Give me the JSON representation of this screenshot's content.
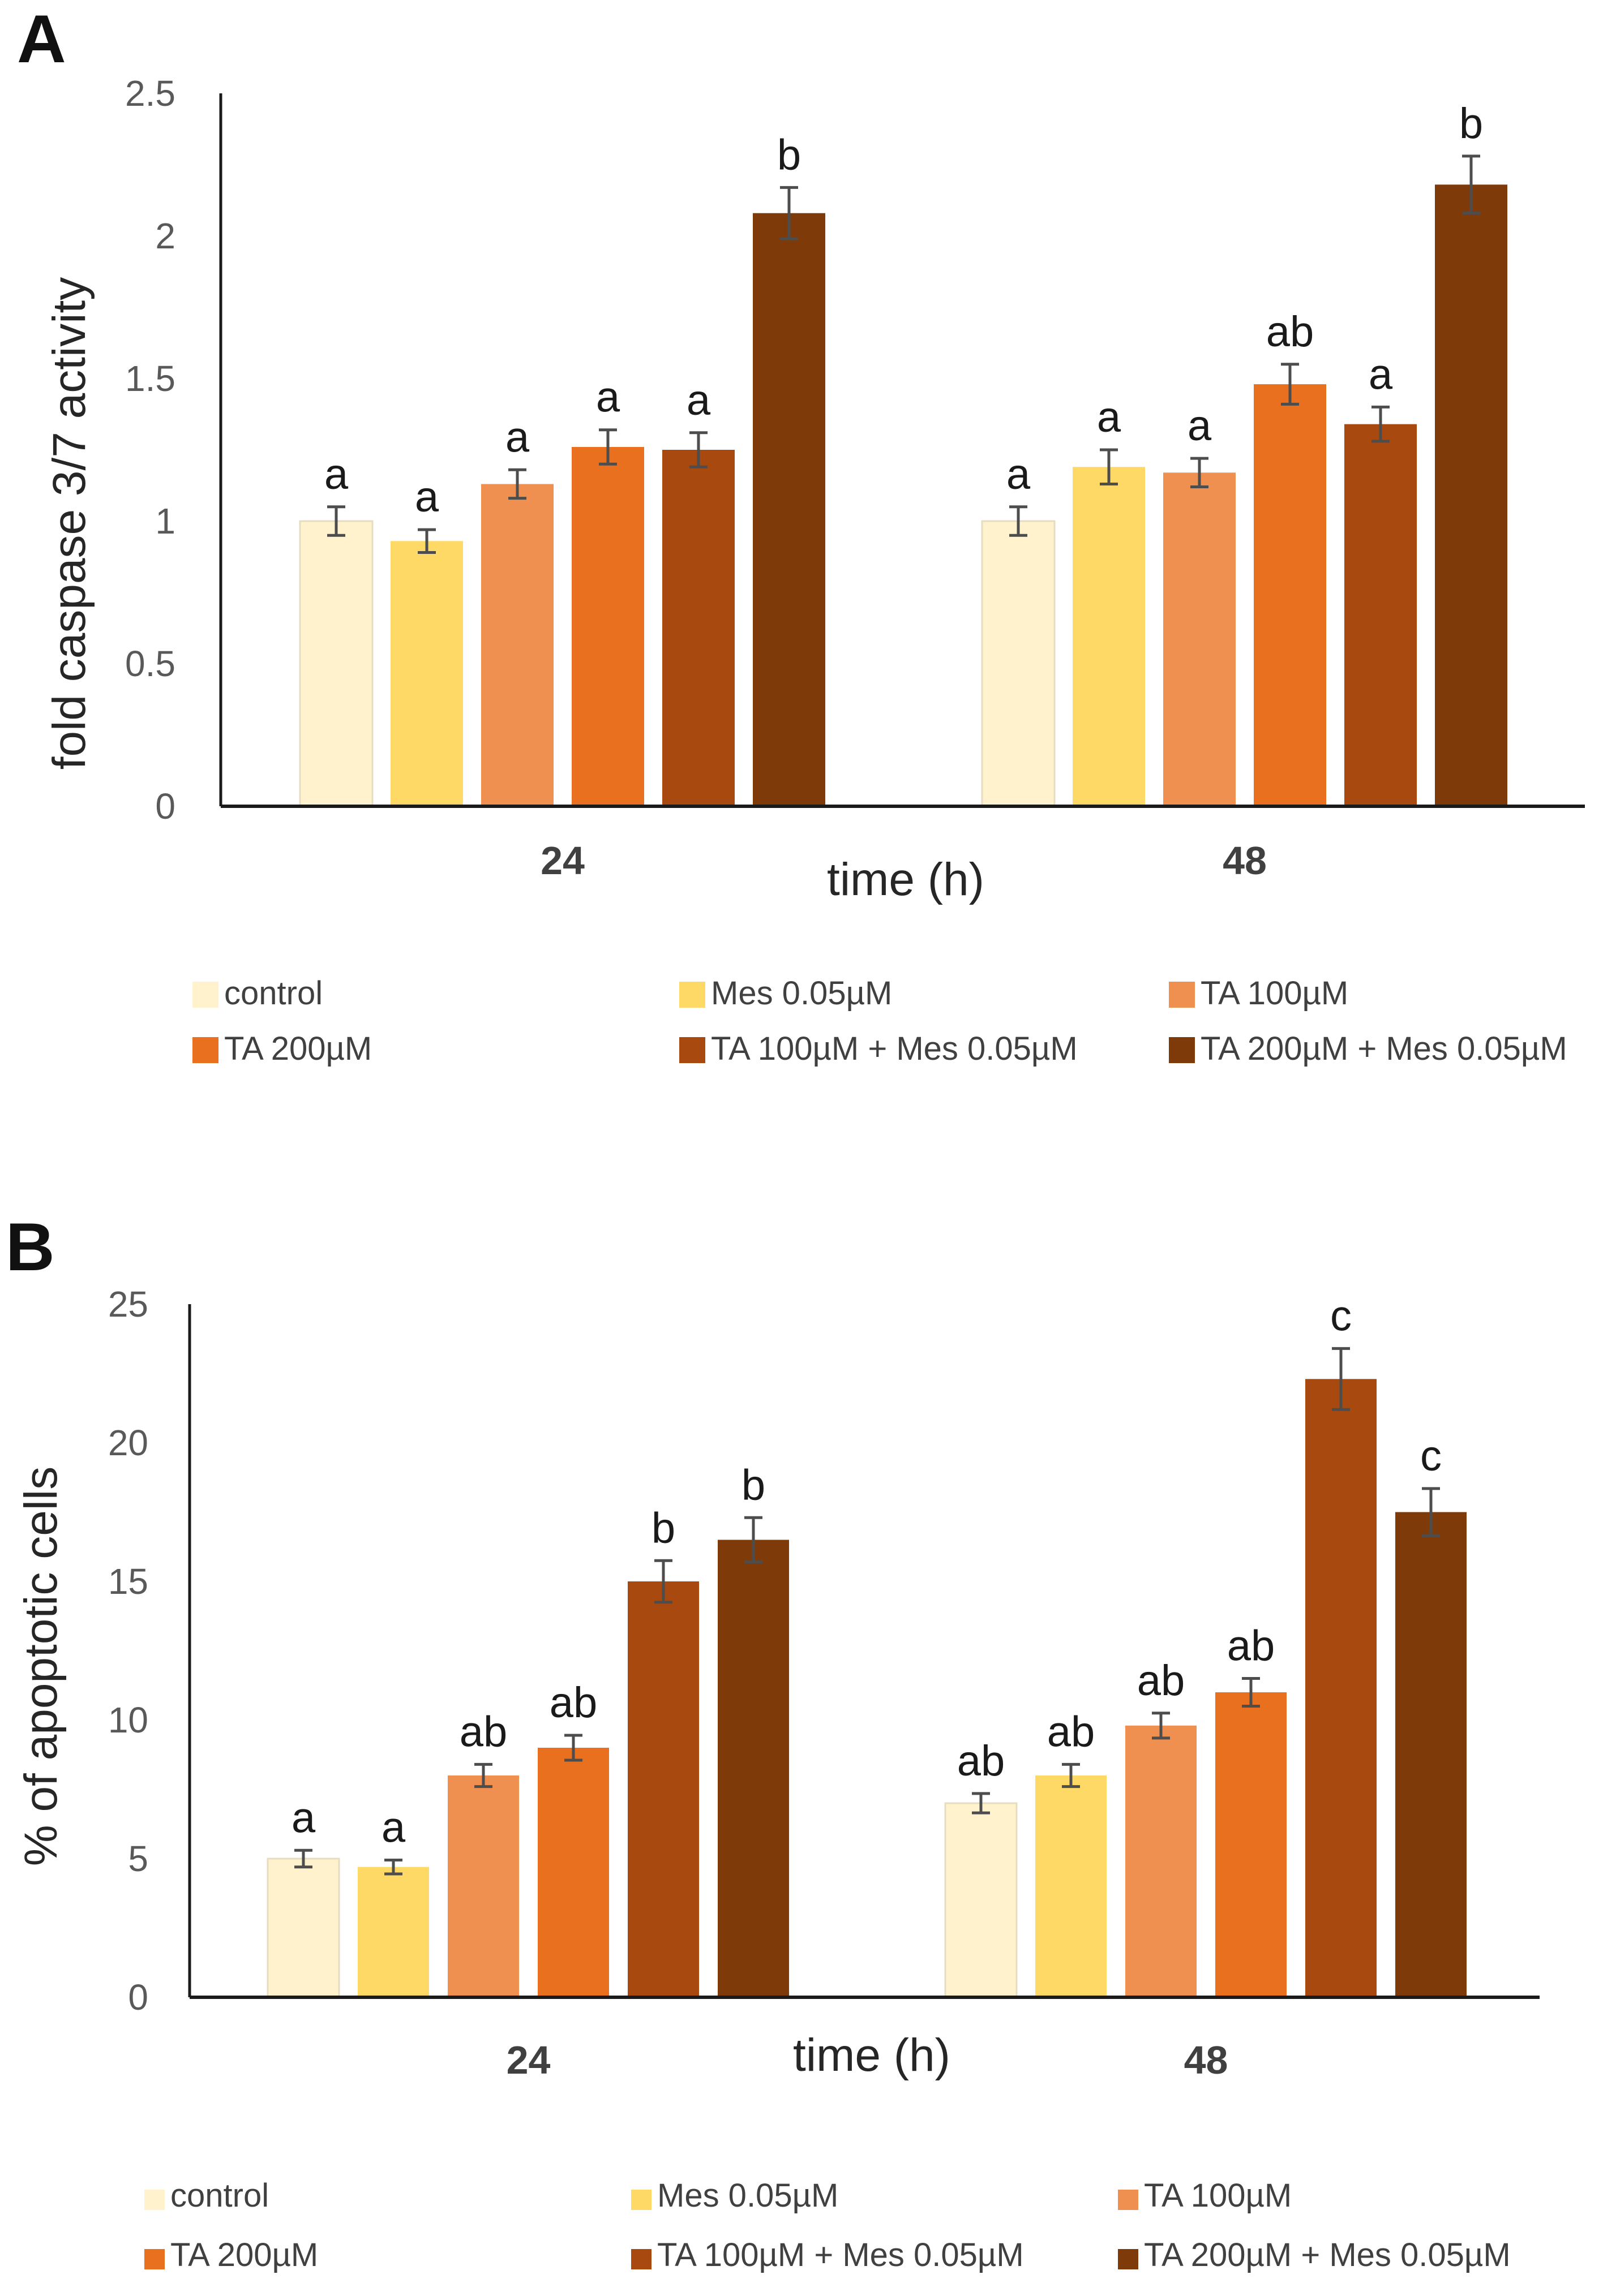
{
  "colors": [
    "#FFF2CC",
    "#FFD966",
    "#F09050",
    "#E8701E",
    "#A84A10",
    "#7F3A0A"
  ],
  "legend": [
    "control",
    "Mes 0.05µM",
    "TA 100µM",
    "TA 200µM",
    "TA 100µM + Mes 0.05µM",
    "TA 200µM + Mes 0.05µM"
  ],
  "chart_data": [
    {
      "panel": "A",
      "type": "bar",
      "categories": [
        "24",
        "48"
      ],
      "xlabel": "time (h)",
      "ylabel": "fold caspase 3/7 activity",
      "ylim": [
        0,
        2.5
      ],
      "yticks": [
        "0",
        "0.5",
        "1",
        "1.5",
        "2",
        "2.5"
      ],
      "series": [
        {
          "name": "control",
          "values": [
            1.0,
            1.0
          ],
          "errors": [
            0.05,
            0.05
          ],
          "labels": [
            "a",
            "a"
          ]
        },
        {
          "name": "Mes 0.05µM",
          "values": [
            0.93,
            1.19
          ],
          "errors": [
            0.04,
            0.06
          ],
          "labels": [
            "a",
            "a"
          ]
        },
        {
          "name": "TA 100µM",
          "values": [
            1.13,
            1.17
          ],
          "errors": [
            0.05,
            0.05
          ],
          "labels": [
            "a",
            "a"
          ]
        },
        {
          "name": "TA 200µM",
          "values": [
            1.26,
            1.48
          ],
          "errors": [
            0.06,
            0.07
          ],
          "labels": [
            "a",
            "ab"
          ]
        },
        {
          "name": "TA 100µM + Mes 0.05µM",
          "values": [
            1.25,
            1.34
          ],
          "errors": [
            0.06,
            0.06
          ],
          "labels": [
            "a",
            "a"
          ]
        },
        {
          "name": "TA 200µM + Mes 0.05µM",
          "values": [
            2.08,
            2.18
          ],
          "errors": [
            0.09,
            0.1
          ],
          "labels": [
            "b",
            "b"
          ]
        }
      ]
    },
    {
      "panel": "B",
      "type": "bar",
      "categories": [
        "24",
        "48"
      ],
      "xlabel": "time (h)",
      "ylabel": "% of apoptotic cells",
      "ylim": [
        0,
        25
      ],
      "yticks": [
        "0",
        "5",
        "10",
        "15",
        "20",
        "25"
      ],
      "series": [
        {
          "name": "control",
          "values": [
            5.0,
            7.0
          ],
          "errors": [
            0.3,
            0.35
          ],
          "labels": [
            "a",
            "ab"
          ]
        },
        {
          "name": "Mes 0.05µM",
          "values": [
            4.7,
            8.0
          ],
          "errors": [
            0.25,
            0.4
          ],
          "labels": [
            "a",
            "ab"
          ]
        },
        {
          "name": "TA 100µM",
          "values": [
            8.0,
            9.8
          ],
          "errors": [
            0.4,
            0.45
          ],
          "labels": [
            "ab",
            "ab"
          ]
        },
        {
          "name": "TA 200µM",
          "values": [
            9.0,
            11.0
          ],
          "errors": [
            0.45,
            0.5
          ],
          "labels": [
            "ab",
            "ab"
          ]
        },
        {
          "name": "TA 100µM + Mes 0.05µM",
          "values": [
            15.0,
            22.3
          ],
          "errors": [
            0.75,
            1.1
          ],
          "labels": [
            "b",
            "c"
          ]
        },
        {
          "name": "TA 200µM + Mes 0.05µM",
          "values": [
            16.5,
            17.5
          ],
          "errors": [
            0.8,
            0.85
          ],
          "labels": [
            "b",
            "c"
          ]
        }
      ]
    }
  ]
}
